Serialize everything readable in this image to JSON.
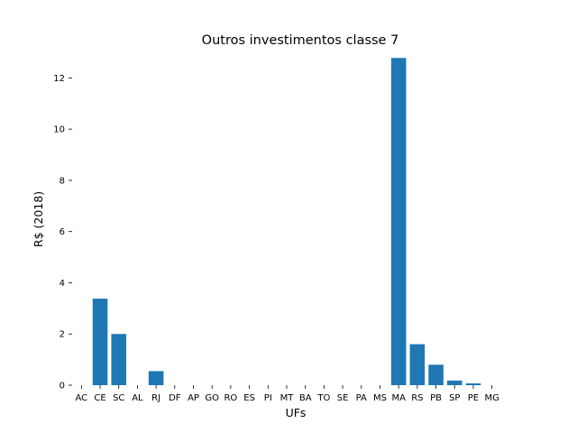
{
  "chart_data": {
    "type": "bar",
    "title": "Outros investimentos classe 7",
    "xlabel": "UFs",
    "ylabel": "R$ (2018)",
    "categories": [
      "AC",
      "CE",
      "SC",
      "AL",
      "RJ",
      "DF",
      "AP",
      "GO",
      "RO",
      "ES",
      "PI",
      "MT",
      "BA",
      "TO",
      "SE",
      "PA",
      "MS",
      "MA",
      "RS",
      "PB",
      "SP",
      "PE",
      "MG"
    ],
    "values": [
      0,
      3.38,
      2.0,
      0,
      0.55,
      0,
      0,
      0,
      0,
      0,
      0,
      0,
      0,
      0,
      0,
      0,
      0,
      12.78,
      1.6,
      0.8,
      0.18,
      0.07,
      0
    ],
    "yticks": [
      0,
      2,
      4,
      6,
      8,
      10,
      12
    ],
    "ylim": [
      0,
      13.0
    ],
    "grid": false,
    "bar_color": "#1f77b4"
  }
}
